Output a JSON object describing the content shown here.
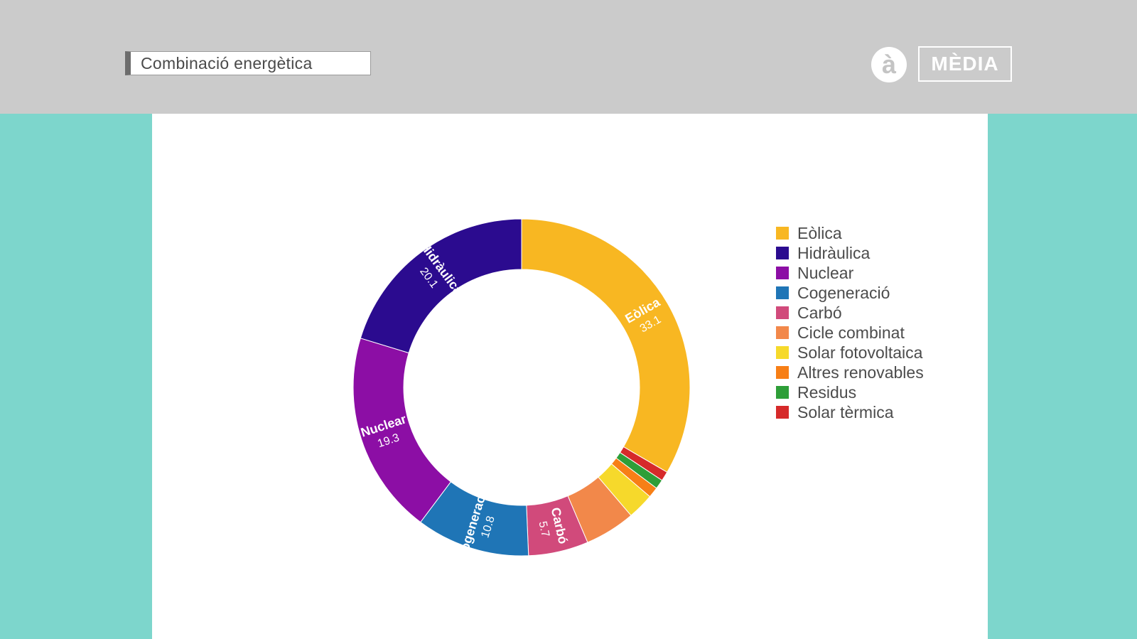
{
  "header": {
    "title": "Combinació energètica",
    "logo_mark": "à",
    "logo_text": "MÈDIA"
  },
  "chart_data": {
    "type": "pie",
    "style": "donut",
    "legend_position": "right",
    "slices": [
      {
        "label": "Eòlica",
        "value": 33.1,
        "value_label": "33.1",
        "color": "#f8b722"
      },
      {
        "label": "Solar tèrmica",
        "value": 0.9,
        "value_label": "",
        "color": "#d62a2a"
      },
      {
        "label": "Residus",
        "value": 0.9,
        "value_label": "",
        "color": "#2e9e38"
      },
      {
        "label": "Altres renovables",
        "value": 1.0,
        "value_label": "",
        "color": "#f77f16"
      },
      {
        "label": "Solar fotovoltaica",
        "value": 2.5,
        "value_label": "",
        "color": "#f6d92b"
      },
      {
        "label": "Cicle combinat",
        "value": 4.8,
        "value_label": "",
        "color": "#f2884a"
      },
      {
        "label": "Carbó",
        "value": 5.7,
        "value_label": "5.7",
        "color": "#d14a7b"
      },
      {
        "label": "Cogeneració",
        "value": 10.8,
        "value_label": "10.8",
        "color": "#1f75b6"
      },
      {
        "label": "Nuclear",
        "value": 19.3,
        "value_label": "19.3",
        "color": "#8c0ea5"
      },
      {
        "label": "Hidràulica",
        "value": 20.1,
        "value_label": "20.1",
        "color": "#2b0b8f"
      }
    ],
    "legend": [
      {
        "label": "Eòlica",
        "color": "#f8b722"
      },
      {
        "label": "Hidràulica",
        "color": "#2b0b8f"
      },
      {
        "label": "Nuclear",
        "color": "#8c0ea5"
      },
      {
        "label": "Cogeneració",
        "color": "#1f75b6"
      },
      {
        "label": "Carbó",
        "color": "#d14a7b"
      },
      {
        "label": "Cicle combinat",
        "color": "#f2884a"
      },
      {
        "label": "Solar fotovoltaica",
        "color": "#f6d92b"
      },
      {
        "label": "Altres renovables",
        "color": "#f77f16"
      },
      {
        "label": "Residus",
        "color": "#2e9e38"
      },
      {
        "label": "Solar tèrmica",
        "color": "#d62a2a"
      }
    ]
  }
}
